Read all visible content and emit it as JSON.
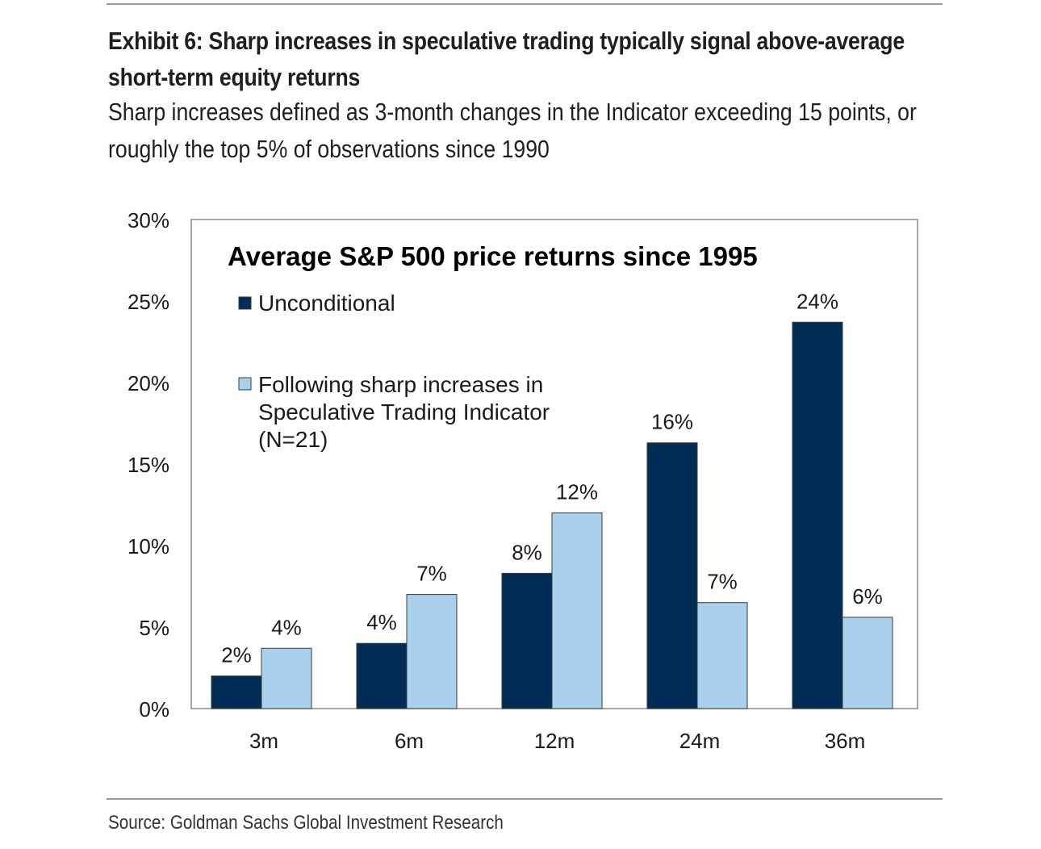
{
  "header": {
    "title": "Exhibit 6: Sharp increases in speculative trading typically signal above-average short-term equity returns",
    "subtitle": "Sharp increases defined as 3-month changes in the Indicator exceeding 15 points, or roughly the top 5% of observations since 1990"
  },
  "footer": {
    "source": "Source: Goldman Sachs Global Investment Research"
  },
  "chart_data": {
    "type": "bar",
    "title": "Average S&P 500 price returns since 1995",
    "xlabel": "",
    "ylabel": "",
    "categories": [
      "3m",
      "6m",
      "12m",
      "24m",
      "36m"
    ],
    "ylim": [
      0,
      30
    ],
    "yticks": [
      0,
      5,
      10,
      15,
      20,
      25,
      30
    ],
    "ytick_labels": [
      "0%",
      "5%",
      "10%",
      "15%",
      "20%",
      "25%",
      "30%"
    ],
    "grid": false,
    "legend_position": "top-left",
    "series": [
      {
        "name": "Unconditional",
        "color": "#002d56",
        "values": [
          2.0,
          4.0,
          8.3,
          16.3,
          23.7
        ],
        "labels": [
          "2%",
          "4%",
          "8%",
          "16%",
          "24%"
        ]
      },
      {
        "name": "Following sharp increases in Speculative Trading Indicator (N=21)",
        "legend_lines": [
          "Following sharp increases in",
          "Speculative Trading Indicator",
          "(N=21)"
        ],
        "color": "#a9d1ee",
        "values": [
          3.7,
          7.0,
          12.0,
          6.5,
          5.6
        ],
        "labels": [
          "4%",
          "7%",
          "12%",
          "7%",
          "6%"
        ]
      }
    ]
  }
}
